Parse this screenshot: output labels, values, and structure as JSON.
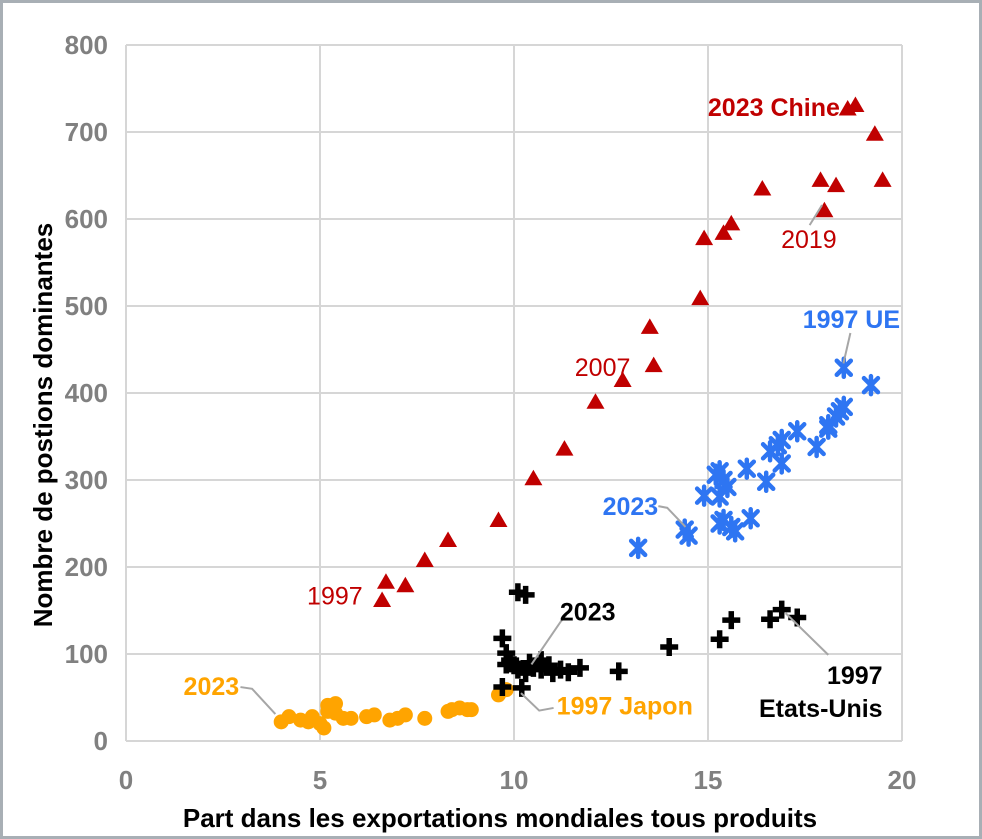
{
  "chart_data": {
    "type": "scatter",
    "xlabel": "Part dans les exportations mondiales tous produits",
    "ylabel": "Nombre de postions dominantes",
    "xlim": [
      0,
      20
    ],
    "ylim": [
      0,
      800
    ],
    "xticks": [
      0,
      5,
      10,
      15,
      20
    ],
    "yticks": [
      0,
      100,
      200,
      300,
      400,
      500,
      600,
      700,
      800
    ],
    "grid": true,
    "legend": "none",
    "colors": {
      "chine": "#c00000",
      "ue": "#2e75f2",
      "etats_unis": "#000000",
      "japon": "#ffa400",
      "grid": "#d6d6d6",
      "ticks": "#808080",
      "leader": "#a6a6a6"
    },
    "series": [
      {
        "name": "UE",
        "marker": "asterisk",
        "color": "#2e75f2",
        "points": [
          [
            13.2,
            222
          ],
          [
            14.4,
            243
          ],
          [
            14.5,
            236
          ],
          [
            14.9,
            282
          ],
          [
            15.3,
            281
          ],
          [
            15.3,
            250
          ],
          [
            15.4,
            254
          ],
          [
            15.6,
            246
          ],
          [
            15.7,
            241
          ],
          [
            16.1,
            256
          ],
          [
            15.2,
            306
          ],
          [
            15.3,
            310
          ],
          [
            15.4,
            300
          ],
          [
            15.5,
            292
          ],
          [
            16.0,
            313
          ],
          [
            16.5,
            298
          ],
          [
            16.6,
            333
          ],
          [
            16.8,
            340
          ],
          [
            16.9,
            346
          ],
          [
            16.9,
            319
          ],
          [
            17.3,
            356
          ],
          [
            17.8,
            338
          ],
          [
            18.1,
            359
          ],
          [
            18.1,
            363
          ],
          [
            18.3,
            373
          ],
          [
            18.4,
            379
          ],
          [
            18.5,
            384
          ],
          [
            18.5,
            429
          ],
          [
            19.2,
            409
          ]
        ]
      },
      {
        "name": "Japon",
        "marker": "circle",
        "color": "#ffa400",
        "points": [
          [
            4.0,
            22
          ],
          [
            4.2,
            28
          ],
          [
            4.5,
            24
          ],
          [
            4.7,
            22
          ],
          [
            4.8,
            28
          ],
          [
            5.0,
            20
          ],
          [
            5.1,
            15
          ],
          [
            5.2,
            34
          ],
          [
            5.2,
            41
          ],
          [
            5.4,
            32
          ],
          [
            5.4,
            43
          ],
          [
            5.6,
            26
          ],
          [
            5.8,
            26
          ],
          [
            6.2,
            28
          ],
          [
            6.4,
            30
          ],
          [
            6.8,
            24
          ],
          [
            7.0,
            26
          ],
          [
            7.2,
            30
          ],
          [
            7.7,
            26
          ],
          [
            8.3,
            34
          ],
          [
            8.4,
            36
          ],
          [
            8.6,
            38
          ],
          [
            8.8,
            36
          ],
          [
            8.9,
            36
          ],
          [
            9.6,
            53
          ],
          [
            9.8,
            59
          ]
        ]
      },
      {
        "name": "Chine",
        "marker": "triangle",
        "color": "#c00000",
        "points": [
          [
            6.6,
            162
          ],
          [
            6.7,
            183
          ],
          [
            7.2,
            179
          ],
          [
            7.7,
            208
          ],
          [
            8.3,
            231
          ],
          [
            9.6,
            254
          ],
          [
            10.5,
            302
          ],
          [
            11.3,
            336
          ],
          [
            12.1,
            390
          ],
          [
            12.8,
            415
          ],
          [
            13.5,
            476
          ],
          [
            13.6,
            432
          ],
          [
            14.8,
            509
          ],
          [
            14.9,
            578
          ],
          [
            15.4,
            584
          ],
          [
            15.6,
            595
          ],
          [
            16.4,
            635
          ],
          [
            18.0,
            610
          ],
          [
            17.9,
            645
          ],
          [
            18.3,
            639
          ],
          [
            19.5,
            645
          ],
          [
            19.3,
            698
          ],
          [
            18.6,
            727
          ],
          [
            18.8,
            731
          ]
        ]
      },
      {
        "name": "Etats-Unis",
        "marker": "plus",
        "color": "#000000",
        "points": [
          [
            10.1,
            171
          ],
          [
            10.3,
            168
          ],
          [
            9.7,
            118
          ],
          [
            9.8,
            101
          ],
          [
            9.9,
            93
          ],
          [
            9.8,
            88
          ],
          [
            10.0,
            87
          ],
          [
            10.1,
            82
          ],
          [
            10.3,
            78
          ],
          [
            10.4,
            90
          ],
          [
            10.5,
            84
          ],
          [
            10.7,
            93
          ],
          [
            10.7,
            82
          ],
          [
            10.9,
            87
          ],
          [
            11.0,
            78
          ],
          [
            11.2,
            82
          ],
          [
            11.4,
            79
          ],
          [
            11.7,
            84
          ],
          [
            12.7,
            80
          ],
          [
            9.7,
            62
          ],
          [
            10.2,
            61
          ],
          [
            14.0,
            108
          ],
          [
            15.3,
            117
          ],
          [
            15.6,
            139
          ],
          [
            16.6,
            140
          ],
          [
            16.9,
            151
          ],
          [
            17.3,
            142
          ]
        ]
      }
    ],
    "annotations": [
      {
        "id": "label-2023-chine",
        "text": "2023 Chine",
        "x": 18.4,
        "y": 729,
        "anchor": "end",
        "color": "#c00000",
        "bold": true
      },
      {
        "id": "label-2019-chine",
        "text": "2019",
        "x": 17.6,
        "y": 577,
        "anchor": "middle",
        "color": "#c00000",
        "bold": false,
        "leader": [
          [
            17.62,
            593
          ],
          [
            17.94,
            616
          ]
        ]
      },
      {
        "id": "label-2007-chine",
        "text": "2007",
        "x": 13.0,
        "y": 430,
        "anchor": "end",
        "color": "#c00000",
        "bold": false
      },
      {
        "id": "label-1997-chine",
        "text": "1997",
        "x": 6.1,
        "y": 167,
        "anchor": "end",
        "color": "#c00000",
        "bold": false
      },
      {
        "id": "label-1997-ue",
        "text": "1997 UE",
        "x": 19.95,
        "y": 485,
        "anchor": "end",
        "color": "#2e75f2",
        "bold": true,
        "leader": [
          [
            18.67,
            469
          ],
          [
            18.49,
            434
          ]
        ]
      },
      {
        "id": "label-2023-ue",
        "text": "2023",
        "x": 13.0,
        "y": 270,
        "anchor": "middle",
        "color": "#2e75f2",
        "bold": true,
        "leader": [
          [
            13.72,
            270
          ],
          [
            13.95,
            268
          ],
          [
            14.42,
            246
          ]
        ]
      },
      {
        "id": "label-2023-etats-unis",
        "text": "2023",
        "x": 11.9,
        "y": 149,
        "anchor": "middle",
        "color": "#000000",
        "bold": true,
        "leader": [
          [
            11.35,
            145
          ],
          [
            11.2,
            137
          ],
          [
            10.45,
            88
          ]
        ]
      },
      {
        "id": "label-1997-etats-unis",
        "text": "1997\nEtats-Unis",
        "x": 19.5,
        "y": 76,
        "anchor": "end",
        "color": "#000000",
        "bold": true,
        "leader": [
          [
            17.0,
            147
          ],
          [
            18.1,
            99
          ]
        ]
      },
      {
        "id": "label-1997-japon",
        "text": "1997 Japon",
        "x": 11.1,
        "y": 41,
        "anchor": "start",
        "color": "#ffa400",
        "bold": true,
        "leader": [
          [
            11.02,
            38
          ],
          [
            10.65,
            35
          ],
          [
            10.18,
            55
          ]
        ]
      },
      {
        "id": "label-2023-japon",
        "text": "2023",
        "x": 2.2,
        "y": 63,
        "anchor": "middle",
        "color": "#ffa400",
        "bold": true,
        "leader": [
          [
            2.95,
            62
          ],
          [
            3.25,
            60
          ],
          [
            3.85,
            31
          ]
        ]
      }
    ]
  }
}
